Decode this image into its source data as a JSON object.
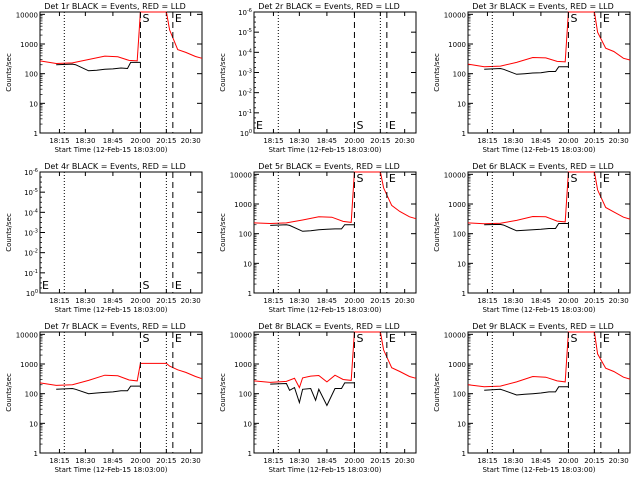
{
  "chart_data": [
    {
      "panel": "1r",
      "type": "line",
      "title": "Det 1r BLACK = Events, RED = LLD",
      "xlabel": "Start Time (12-Feb-15 18:03:00)",
      "ylabel": "Counts/sec",
      "x_tick_labels": [
        "18:15",
        "18:30",
        "18:45",
        "20:00",
        "20:15",
        "20:30"
      ],
      "y_tick_labels": [
        "1",
        "10",
        "100",
        "1000",
        "10000"
      ],
      "ylim": [
        1,
        12000
      ],
      "log_y": true,
      "grid": false,
      "markers": [
        "S",
        "E"
      ],
      "series": [
        {
          "color": "#ff0000",
          "points": [
            [
              0.0,
              270
            ],
            [
              0.1,
              220
            ],
            [
              0.2,
              230
            ],
            [
              0.3,
              300
            ],
            [
              0.4,
              390
            ],
            [
              0.48,
              370
            ],
            [
              0.55,
              280
            ],
            [
              0.6,
              270
            ],
            [
              0.62,
              12000
            ],
            [
              0.78,
              12000
            ],
            [
              0.8,
              3000
            ],
            [
              0.85,
              650
            ],
            [
              0.9,
              520
            ],
            [
              0.96,
              380
            ],
            [
              1.0,
              330
            ]
          ]
        },
        {
          "color": "#000000",
          "points": [
            [
              0.1,
              200
            ],
            [
              0.2,
              210
            ],
            [
              0.22,
              200
            ],
            [
              0.3,
              125
            ],
            [
              0.35,
              130
            ],
            [
              0.4,
              140
            ],
            [
              0.45,
              145
            ],
            [
              0.5,
              155
            ],
            [
              0.54,
              150
            ],
            [
              0.56,
              240
            ],
            [
              0.6,
              240
            ],
            [
              0.62,
              240
            ]
          ]
        }
      ]
    },
    {
      "panel": "2r",
      "type": "line",
      "title": "Det 2r BLACK = Events, RED = LLD",
      "xlabel": "Start Time (12-Feb-15 18:03:00)",
      "ylabel": "Counts/sec",
      "x_tick_labels": [
        "18:15",
        "18:30",
        "18:45",
        "20:00",
        "20:15",
        "20:30"
      ],
      "y_tick_labels": [
        "10^0",
        "10^-1",
        "10^-2",
        "10^-3",
        "10^-4",
        "10^-5",
        "10^-6"
      ],
      "empty": true,
      "log_y": true,
      "grid": false,
      "markers": [
        "S",
        "E"
      ],
      "series": []
    },
    {
      "panel": "3r",
      "type": "line",
      "title": "Det 3r BLACK = Events, RED = LLD",
      "xlabel": "Start Time (12-Feb-15 18:03:00)",
      "ylabel": "Counts/sec",
      "x_tick_labels": [
        "18:15",
        "18:30",
        "18:45",
        "20:00",
        "20:15",
        "20:30"
      ],
      "y_tick_labels": [
        "1",
        "10",
        "100",
        "1000",
        "10000"
      ],
      "ylim": [
        1,
        12000
      ],
      "log_y": true,
      "grid": false,
      "markers": [
        "S",
        "E"
      ],
      "series": [
        {
          "color": "#ff0000",
          "points": [
            [
              0.0,
              210
            ],
            [
              0.1,
              170
            ],
            [
              0.2,
              180
            ],
            [
              0.3,
              240
            ],
            [
              0.4,
              350
            ],
            [
              0.48,
              340
            ],
            [
              0.55,
              260
            ],
            [
              0.6,
              250
            ],
            [
              0.62,
              12000
            ],
            [
              0.78,
              12000
            ],
            [
              0.8,
              2500
            ],
            [
              0.85,
              720
            ],
            [
              0.9,
              560
            ],
            [
              0.96,
              330
            ],
            [
              1.0,
              290
            ]
          ]
        },
        {
          "color": "#000000",
          "points": [
            [
              0.1,
              140
            ],
            [
              0.2,
              150
            ],
            [
              0.22,
              140
            ],
            [
              0.3,
              95
            ],
            [
              0.35,
              100
            ],
            [
              0.4,
              105
            ],
            [
              0.45,
              108
            ],
            [
              0.5,
              118
            ],
            [
              0.54,
              118
            ],
            [
              0.56,
              170
            ],
            [
              0.6,
              170
            ],
            [
              0.62,
              170
            ]
          ]
        }
      ]
    },
    {
      "panel": "4r",
      "type": "line",
      "title": "Det 4r BLACK = Events, RED = LLD",
      "xlabel": "Start Time (12-Feb-15 18:03:00)",
      "ylabel": "Counts/sec",
      "x_tick_labels": [
        "18:15",
        "18:30",
        "18:45",
        "20:00",
        "20:15",
        "20:30"
      ],
      "y_tick_labels": [
        "10^0",
        "10^-1",
        "10^-2",
        "10^-3",
        "10^-4",
        "10^-5",
        "10^-6"
      ],
      "empty": true,
      "log_y": true,
      "grid": false,
      "markers": [
        "S",
        "E"
      ],
      "series": []
    },
    {
      "panel": "5r",
      "type": "line",
      "title": "Det 5r BLACK = Events, RED = LLD",
      "xlabel": "Start Time (12-Feb-15 18:03:00)",
      "ylabel": "Counts/sec",
      "x_tick_labels": [
        "18:15",
        "18:30",
        "18:45",
        "20:00",
        "20:15",
        "20:30"
      ],
      "y_tick_labels": [
        "1",
        "10",
        "100",
        "1000",
        "10000"
      ],
      "ylim": [
        1,
        12000
      ],
      "log_y": true,
      "grid": false,
      "markers": [
        "S",
        "E"
      ],
      "series": [
        {
          "color": "#ff0000",
          "points": [
            [
              0.0,
              230
            ],
            [
              0.1,
              220
            ],
            [
              0.2,
              230
            ],
            [
              0.3,
              290
            ],
            [
              0.4,
              370
            ],
            [
              0.48,
              360
            ],
            [
              0.55,
              260
            ],
            [
              0.6,
              240
            ],
            [
              0.62,
              12000
            ],
            [
              0.78,
              12000
            ],
            [
              0.8,
              3500
            ],
            [
              0.85,
              900
            ],
            [
              0.9,
              560
            ],
            [
              0.96,
              370
            ],
            [
              1.0,
              320
            ]
          ]
        },
        {
          "color": "#000000",
          "points": [
            [
              0.1,
              190
            ],
            [
              0.2,
              200
            ],
            [
              0.22,
              190
            ],
            [
              0.3,
              120
            ],
            [
              0.35,
              125
            ],
            [
              0.4,
              135
            ],
            [
              0.45,
              140
            ],
            [
              0.5,
              145
            ],
            [
              0.54,
              145
            ],
            [
              0.56,
              200
            ],
            [
              0.6,
              200
            ],
            [
              0.62,
              200
            ]
          ]
        }
      ]
    },
    {
      "panel": "6r",
      "type": "line",
      "title": "Det 6r BLACK = Events, RED = LLD",
      "xlabel": "Start Time (12-Feb-15 18:03:00)",
      "ylabel": "Counts/sec",
      "x_tick_labels": [
        "18:15",
        "18:30",
        "18:45",
        "20:00",
        "20:15",
        "20:30"
      ],
      "y_tick_labels": [
        "1",
        "10",
        "100",
        "1000",
        "10000"
      ],
      "ylim": [
        1,
        12000
      ],
      "log_y": true,
      "grid": false,
      "markers": [
        "S",
        "E"
      ],
      "series": [
        {
          "color": "#ff0000",
          "points": [
            [
              0.0,
              230
            ],
            [
              0.1,
              215
            ],
            [
              0.2,
              225
            ],
            [
              0.3,
              280
            ],
            [
              0.4,
              380
            ],
            [
              0.48,
              370
            ],
            [
              0.55,
              265
            ],
            [
              0.6,
              250
            ],
            [
              0.62,
              12000
            ],
            [
              0.78,
              12000
            ],
            [
              0.8,
              3000
            ],
            [
              0.85,
              760
            ],
            [
              0.9,
              540
            ],
            [
              0.96,
              360
            ],
            [
              1.0,
              310
            ]
          ]
        },
        {
          "color": "#000000",
          "points": [
            [
              0.1,
              200
            ],
            [
              0.2,
              205
            ],
            [
              0.22,
              195
            ],
            [
              0.3,
              125
            ],
            [
              0.35,
              130
            ],
            [
              0.4,
              135
            ],
            [
              0.45,
              140
            ],
            [
              0.5,
              150
            ],
            [
              0.54,
              150
            ],
            [
              0.56,
              220
            ],
            [
              0.6,
              220
            ],
            [
              0.62,
              220
            ]
          ]
        }
      ]
    },
    {
      "panel": "7r",
      "type": "line",
      "title": "Det 7r BLACK = Events, RED = LLD",
      "xlabel": "Start Time (12-Feb-15 18:03:00)",
      "ylabel": "Counts/sec",
      "x_tick_labels": [
        "18:15",
        "18:30",
        "18:45",
        "20:00",
        "20:15",
        "20:30"
      ],
      "y_tick_labels": [
        "1",
        "10",
        "100",
        "1000",
        "10000"
      ],
      "ylim": [
        1,
        12000
      ],
      "log_y": true,
      "grid": false,
      "markers": [
        "S",
        "E"
      ],
      "series": [
        {
          "color": "#ff0000",
          "points": [
            [
              0.0,
              230
            ],
            [
              0.1,
              190
            ],
            [
              0.2,
              200
            ],
            [
              0.3,
              280
            ],
            [
              0.4,
              420
            ],
            [
              0.48,
              400
            ],
            [
              0.55,
              290
            ],
            [
              0.6,
              270
            ],
            [
              0.62,
              1050
            ],
            [
              0.78,
              1050
            ],
            [
              0.8,
              850
            ],
            [
              0.85,
              640
            ],
            [
              0.9,
              520
            ],
            [
              0.96,
              380
            ],
            [
              1.0,
              320
            ]
          ]
        },
        {
          "color": "#000000",
          "points": [
            [
              0.1,
              140
            ],
            [
              0.2,
              150
            ],
            [
              0.22,
              140
            ],
            [
              0.3,
              100
            ],
            [
              0.35,
              105
            ],
            [
              0.4,
              110
            ],
            [
              0.45,
              115
            ],
            [
              0.5,
              125
            ],
            [
              0.54,
              125
            ],
            [
              0.56,
              180
            ],
            [
              0.6,
              180
            ],
            [
              0.62,
              180
            ]
          ]
        }
      ]
    },
    {
      "panel": "8r",
      "type": "line",
      "title": "Det 8r BLACK = Events, RED = LLD",
      "xlabel": "Start Time (12-Feb-15 18:03:00)",
      "ylabel": "Counts/sec",
      "x_tick_labels": [
        "18:15",
        "18:30",
        "18:45",
        "20:00",
        "20:15",
        "20:30"
      ],
      "y_tick_labels": [
        "1",
        "10",
        "100",
        "1000",
        "10000"
      ],
      "ylim": [
        1,
        12000
      ],
      "log_y": true,
      "grid": false,
      "markers": [
        "S",
        "E"
      ],
      "series": [
        {
          "color": "#ff0000",
          "points": [
            [
              0.0,
              270
            ],
            [
              0.1,
              240
            ],
            [
              0.2,
              260
            ],
            [
              0.25,
              330
            ],
            [
              0.28,
              160
            ],
            [
              0.3,
              340
            ],
            [
              0.35,
              390
            ],
            [
              0.4,
              410
            ],
            [
              0.45,
              250
            ],
            [
              0.5,
              420
            ],
            [
              0.55,
              300
            ],
            [
              0.6,
              280
            ],
            [
              0.62,
              12000
            ],
            [
              0.78,
              12000
            ],
            [
              0.8,
              3000
            ],
            [
              0.85,
              750
            ],
            [
              0.9,
              560
            ],
            [
              0.96,
              380
            ],
            [
              1.0,
              330
            ]
          ]
        },
        {
          "color": "#000000",
          "points": [
            [
              0.1,
              210
            ],
            [
              0.2,
              220
            ],
            [
              0.22,
              130
            ],
            [
              0.25,
              160
            ],
            [
              0.28,
              50
            ],
            [
              0.3,
              140
            ],
            [
              0.35,
              150
            ],
            [
              0.38,
              60
            ],
            [
              0.4,
              140
            ],
            [
              0.45,
              40
            ],
            [
              0.5,
              150
            ],
            [
              0.54,
              150
            ],
            [
              0.56,
              230
            ],
            [
              0.6,
              230
            ],
            [
              0.62,
              230
            ]
          ]
        }
      ]
    },
    {
      "panel": "9r",
      "type": "line",
      "title": "Det 9r BLACK = Events, RED = LLD",
      "xlabel": "Start Time (12-Feb-15 18:03:00)",
      "ylabel": "Counts/sec",
      "x_tick_labels": [
        "18:15",
        "18:30",
        "18:45",
        "20:00",
        "20:15",
        "20:30"
      ],
      "y_tick_labels": [
        "1",
        "10",
        "100",
        "1000",
        "10000"
      ],
      "ylim": [
        1,
        12000
      ],
      "log_y": true,
      "grid": false,
      "markers": [
        "S",
        "E"
      ],
      "series": [
        {
          "color": "#ff0000",
          "points": [
            [
              0.0,
              200
            ],
            [
              0.1,
              170
            ],
            [
              0.2,
              180
            ],
            [
              0.3,
              250
            ],
            [
              0.4,
              380
            ],
            [
              0.48,
              360
            ],
            [
              0.55,
              270
            ],
            [
              0.6,
              250
            ],
            [
              0.62,
              12000
            ],
            [
              0.78,
              12000
            ],
            [
              0.8,
              2200
            ],
            [
              0.85,
              720
            ],
            [
              0.9,
              560
            ],
            [
              0.96,
              360
            ],
            [
              1.0,
              310
            ]
          ]
        },
        {
          "color": "#000000",
          "points": [
            [
              0.1,
              130
            ],
            [
              0.2,
              140
            ],
            [
              0.22,
              130
            ],
            [
              0.3,
              90
            ],
            [
              0.35,
              95
            ],
            [
              0.4,
              100
            ],
            [
              0.45,
              105
            ],
            [
              0.5,
              115
            ],
            [
              0.54,
              115
            ],
            [
              0.56,
              170
            ],
            [
              0.6,
              170
            ],
            [
              0.62,
              170
            ]
          ]
        }
      ]
    }
  ]
}
